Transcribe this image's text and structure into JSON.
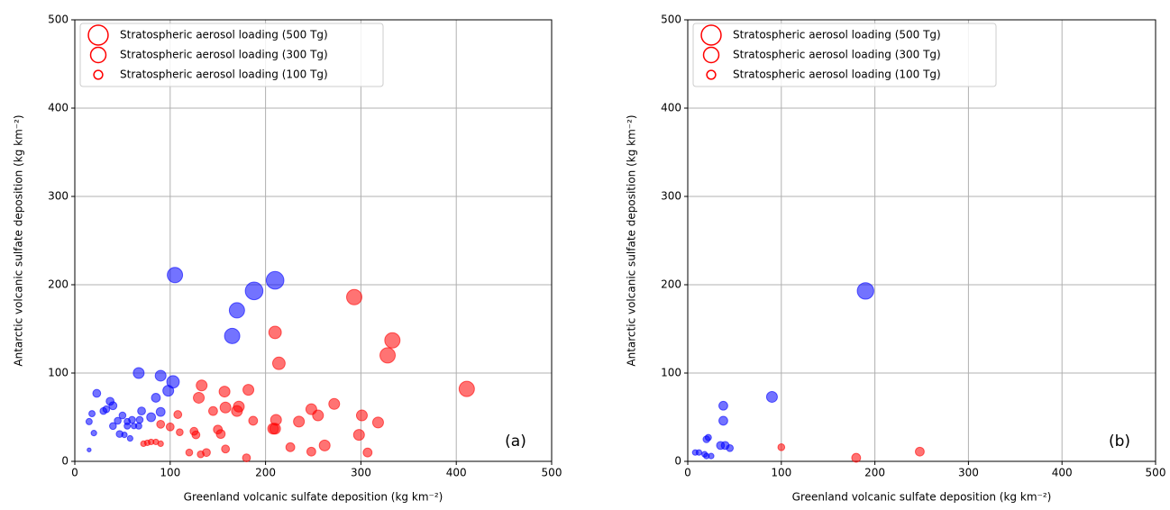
{
  "chart_data": [
    {
      "type": "scatter",
      "xlabel": "Greenland volcanic sulfate deposition (kg km⁻²)",
      "ylabel": "Antarctic volcanic sulfate deposition (kg km⁻²)",
      "panel_label": "(a)",
      "xlim": [
        0,
        500
      ],
      "ylim": [
        0,
        500
      ],
      "xticks": [
        0,
        100,
        200,
        300,
        400,
        500
      ],
      "yticks": [
        0,
        100,
        200,
        300,
        400,
        500
      ],
      "grid": true,
      "legend": [
        {
          "label": "Stratospheric aerosol loading (500 Tg)",
          "size": 500
        },
        {
          "label": "Stratospheric aerosol loading (300 Tg)",
          "size": 300
        },
        {
          "label": "Stratospheric aerosol loading (100 Tg)",
          "size": 100
        }
      ],
      "legend_color": "#ff0000",
      "series": [
        {
          "color": "#0000ff",
          "x": [
            105,
            210,
            188,
            170,
            165,
            67,
            90,
            103,
            98,
            85,
            23,
            37,
            40,
            18,
            15,
            30,
            33,
            50,
            45,
            55,
            60,
            70,
            68,
            90,
            80,
            62,
            55,
            67,
            40,
            47,
            52,
            58,
            20,
            15
          ],
          "y": [
            211,
            205,
            193,
            171,
            142,
            100,
            97,
            90,
            80,
            72,
            77,
            68,
            63,
            54,
            45,
            57,
            59,
            52,
            46,
            45,
            47,
            57,
            47,
            56,
            50,
            40,
            40,
            40,
            40,
            31,
            30,
            26,
            32,
            13
          ],
          "sizes": [
            300,
            400,
            400,
            300,
            300,
            150,
            150,
            200,
            150,
            100,
            80,
            80,
            80,
            50,
            50,
            60,
            60,
            60,
            60,
            50,
            60,
            80,
            60,
            100,
            100,
            40,
            50,
            50,
            60,
            60,
            40,
            40,
            40,
            20
          ]
        },
        {
          "color": "#ff0000",
          "x": [
            293,
            333,
            328,
            411,
            210,
            214,
            133,
            157,
            182,
            130,
            272,
            248,
            255,
            301,
            318,
            235,
            187,
            211,
            172,
            170,
            158,
            145,
            108,
            90,
            100,
            110,
            125,
            150,
            153,
            127,
            208,
            210,
            298,
            262,
            226,
            248,
            307,
            158,
            138,
            132,
            120,
            180,
            72,
            76,
            80,
            85,
            90
          ],
          "y": [
            186,
            137,
            120,
            82,
            146,
            111,
            86,
            79,
            81,
            72,
            65,
            59,
            52,
            52,
            44,
            45,
            46,
            47,
            62,
            57,
            61,
            57,
            53,
            42,
            39,
            33,
            34,
            36,
            31,
            30,
            37,
            37,
            30,
            18,
            16,
            11,
            10,
            14,
            10,
            8,
            10,
            4,
            20,
            21,
            22,
            22,
            20
          ],
          "sizes": [
            300,
            300,
            300,
            300,
            200,
            200,
            150,
            150,
            150,
            150,
            150,
            150,
            150,
            150,
            150,
            150,
            100,
            150,
            150,
            150,
            150,
            100,
            80,
            80,
            80,
            60,
            80,
            100,
            100,
            80,
            150,
            150,
            150,
            150,
            100,
            100,
            100,
            80,
            80,
            60,
            60,
            80,
            40,
            40,
            40,
            40,
            40
          ]
        }
      ]
    },
    {
      "type": "scatter",
      "xlabel": "Greenland volcanic sulfate deposition (kg km⁻²)",
      "ylabel": "Antarctic volcanic sulfate deposition (kg km⁻²)",
      "panel_label": "(b)",
      "xlim": [
        0,
        500
      ],
      "ylim": [
        0,
        500
      ],
      "xticks": [
        0,
        100,
        200,
        300,
        400,
        500
      ],
      "yticks": [
        0,
        100,
        200,
        300,
        400,
        500
      ],
      "grid": true,
      "legend": [
        {
          "label": "Stratospheric aerosol loading (500 Tg)",
          "size": 500
        },
        {
          "label": "Stratospheric aerosol loading (300 Tg)",
          "size": 300
        },
        {
          "label": "Stratospheric aerosol loading (100 Tg)",
          "size": 100
        }
      ],
      "legend_color": "#ff0000",
      "series": [
        {
          "color": "#0000ff",
          "x": [
            190,
            90,
            38,
            38,
            35,
            40,
            45,
            20,
            22,
            8,
            12,
            18,
            20,
            25
          ],
          "y": [
            193,
            73,
            63,
            46,
            18,
            18,
            15,
            25,
            27,
            10,
            10,
            8,
            6,
            6
          ],
          "sizes": [
            350,
            150,
            100,
            100,
            80,
            80,
            60,
            60,
            50,
            40,
            40,
            40,
            40,
            40
          ]
        },
        {
          "color": "#ff0000",
          "x": [
            100,
            180,
            248
          ],
          "y": [
            16,
            4,
            11
          ],
          "sizes": [
            60,
            100,
            100
          ]
        }
      ]
    }
  ]
}
